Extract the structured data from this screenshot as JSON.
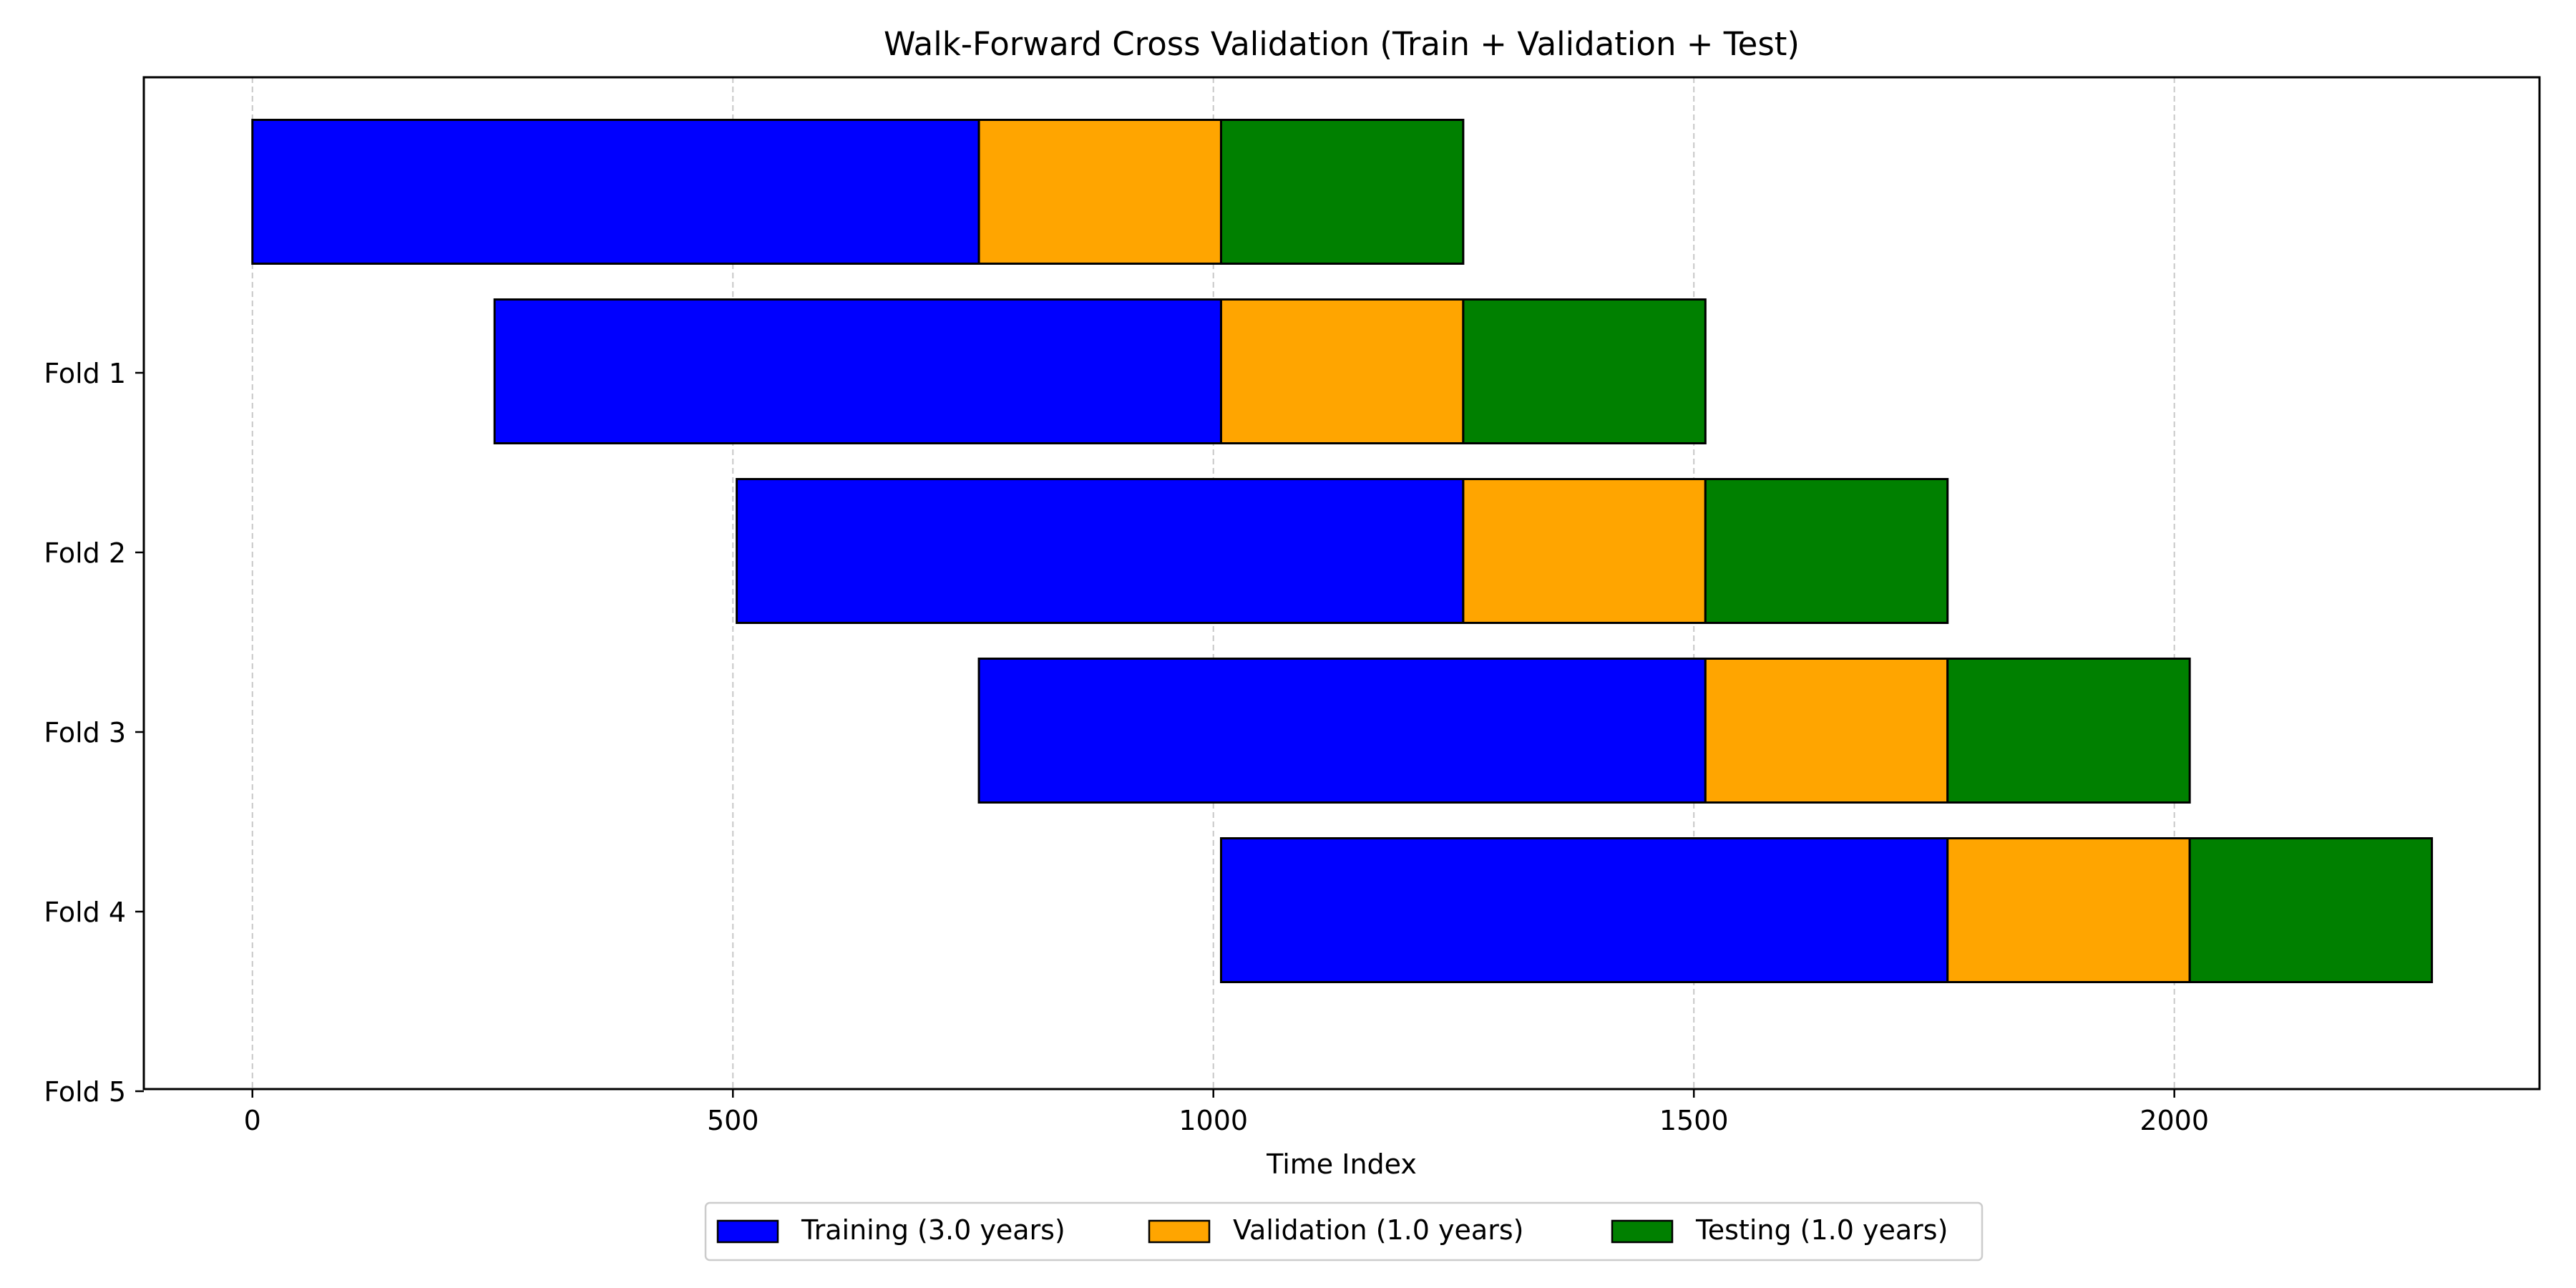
{
  "chart_data": {
    "type": "bar",
    "orientation": "horizontal",
    "stacked": true,
    "title": "Walk-Forward Cross Validation (Train + Validation + Test)",
    "xlabel": "Time Index",
    "ylabel": "",
    "xlim": [
      -113,
      2380
    ],
    "xticks": [
      0,
      500,
      1000,
      1500,
      2000
    ],
    "yticks": [
      "Fold 1",
      "Fold 2",
      "Fold 3",
      "Fold 4",
      "Fold 5"
    ],
    "grid": "x-dashed",
    "legend_position": "bottom-center",
    "rows": [
      {
        "train": [
          0,
          756
        ],
        "validation": [
          756,
          1008
        ],
        "test": [
          1008,
          1260
        ]
      },
      {
        "train": [
          252,
          1008
        ],
        "validation": [
          1008,
          1260
        ],
        "test": [
          1260,
          1512
        ]
      },
      {
        "train": [
          504,
          1260
        ],
        "validation": [
          1260,
          1512
        ],
        "test": [
          1512,
          1764
        ]
      },
      {
        "train": [
          756,
          1512
        ],
        "validation": [
          1512,
          1764
        ],
        "test": [
          1764,
          2016
        ]
      },
      {
        "train": [
          1008,
          1764
        ],
        "validation": [
          1764,
          2016
        ],
        "test": [
          2016,
          2268
        ]
      }
    ],
    "series": [
      {
        "key": "train",
        "name": "Training (3.0 years)",
        "color": "#0000ff"
      },
      {
        "key": "validation",
        "name": "Validation (1.0 years)",
        "color": "#ffa500"
      },
      {
        "key": "test",
        "name": "Testing (1.0 years)",
        "color": "#008000"
      }
    ]
  }
}
